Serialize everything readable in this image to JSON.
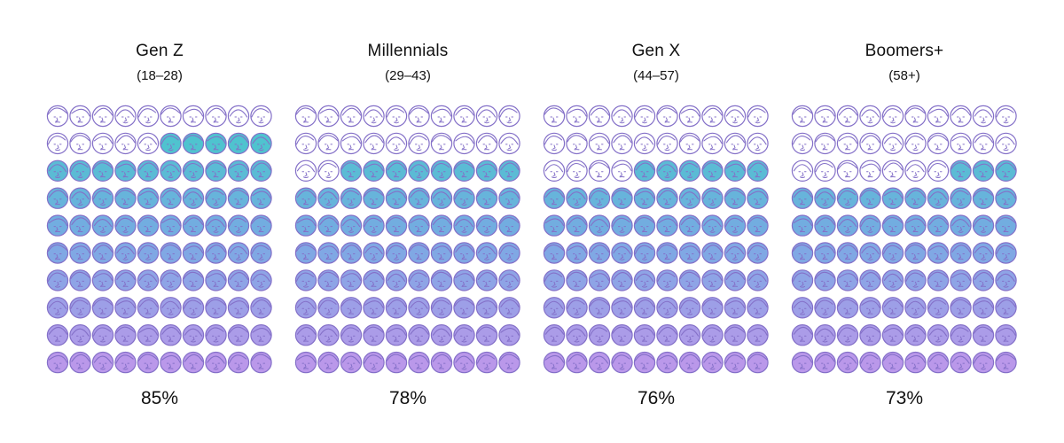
{
  "chart_data": {
    "type": "waffle",
    "title": "",
    "grid": {
      "rows": 10,
      "columns": 10,
      "total_per_panel": 100
    },
    "colors": {
      "outline": "#8470c8",
      "fill_gradient_top": "#2fc4c4",
      "fill_gradient_middle": "#6aa0e0",
      "fill_gradient_bottom": "#b28de8",
      "empty_fill": "#ffffff"
    },
    "icon": "face-icon",
    "fill_order": "bottom-up",
    "series": [
      {
        "name": "Gen Z",
        "range": "(18–28)",
        "value": 85,
        "label": "85%"
      },
      {
        "name": "Millennials",
        "range": "(29–43)",
        "value": 78,
        "label": "78%"
      },
      {
        "name": "Gen X",
        "range": "(44–57)",
        "value": 76,
        "label": "76%"
      },
      {
        "name": "Boomers+",
        "range": "(58+)",
        "value": 73,
        "label": "73%"
      }
    ]
  }
}
